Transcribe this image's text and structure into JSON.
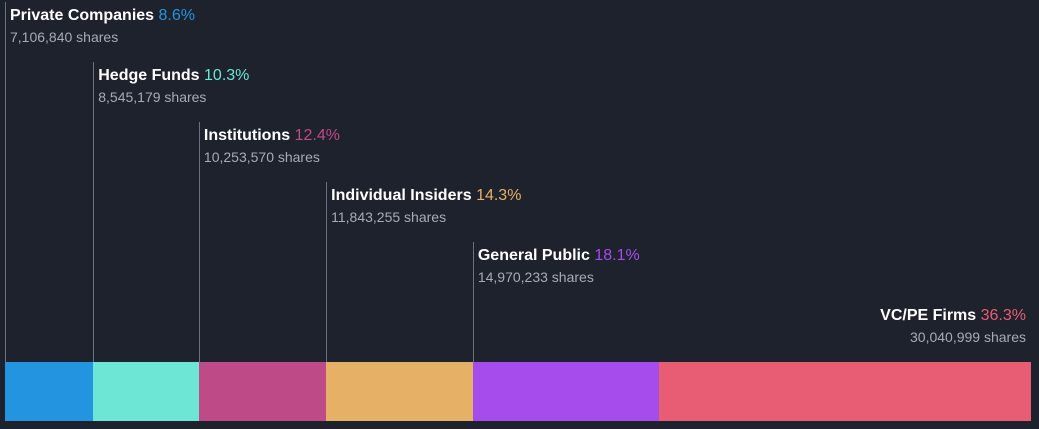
{
  "chart_data": {
    "type": "bar",
    "orientation": "stacked-horizontal",
    "categories": [
      "Private Companies",
      "Hedge Funds",
      "Institutions",
      "Individual Insiders",
      "General Public",
      "VC/PE Firms"
    ],
    "values": [
      8.6,
      10.3,
      12.4,
      14.3,
      18.1,
      36.3
    ],
    "percent_labels": [
      "8.6%",
      "10.3%",
      "12.4%",
      "14.3%",
      "18.1%",
      "36.3%"
    ],
    "shares": [
      7106840,
      8545179,
      10253570,
      11843255,
      14970233,
      30040999
    ],
    "share_labels": [
      "7,106,840 shares",
      "8,545,179 shares",
      "10,253,570 shares",
      "11,843,255 shares",
      "14,970,233 shares",
      "30,040,999 shares"
    ],
    "colors": [
      "#2394df",
      "#6ee6d6",
      "#bf4a88",
      "#e6b066",
      "#a64cec",
      "#e85c74"
    ],
    "background": "#1e222d",
    "title": "",
    "legend": "none"
  }
}
